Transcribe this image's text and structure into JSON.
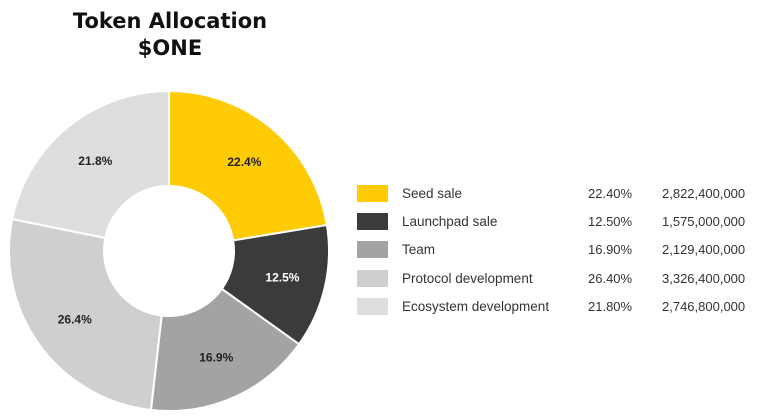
{
  "chart_data": {
    "type": "pie",
    "variant": "donut",
    "title": "Token Allocation",
    "subtitle": "$ONE",
    "slices": [
      {
        "label": "Seed sale",
        "value": 22.4,
        "pct_text": "22.40%",
        "amount": "2,822,400,000",
        "slice_label": "22.4%",
        "color": "#ffcb05",
        "label_color": "#222222"
      },
      {
        "label": "Launchpad sale",
        "value": 12.5,
        "pct_text": "12.50%",
        "amount": "1,575,000,000",
        "slice_label": "12.5%",
        "color": "#3b3b3b",
        "label_color": "#ffffff"
      },
      {
        "label": "Team",
        "value": 16.9,
        "pct_text": "16.90%",
        "amount": "2,129,400,000",
        "slice_label": "16.9%",
        "color": "#a3a3a3",
        "label_color": "#222222"
      },
      {
        "label": "Protocol development",
        "value": 26.4,
        "pct_text": "26.40%",
        "amount": "3,326,400,000",
        "slice_label": "26.4%",
        "color": "#cfcfcf",
        "label_color": "#222222"
      },
      {
        "label": "Ecosystem development",
        "value": 21.8,
        "pct_text": "21.80%",
        "amount": "2,746,800,000",
        "slice_label": "21.8%",
        "color": "#dedede",
        "label_color": "#222222"
      }
    ],
    "legend_position": "right"
  }
}
